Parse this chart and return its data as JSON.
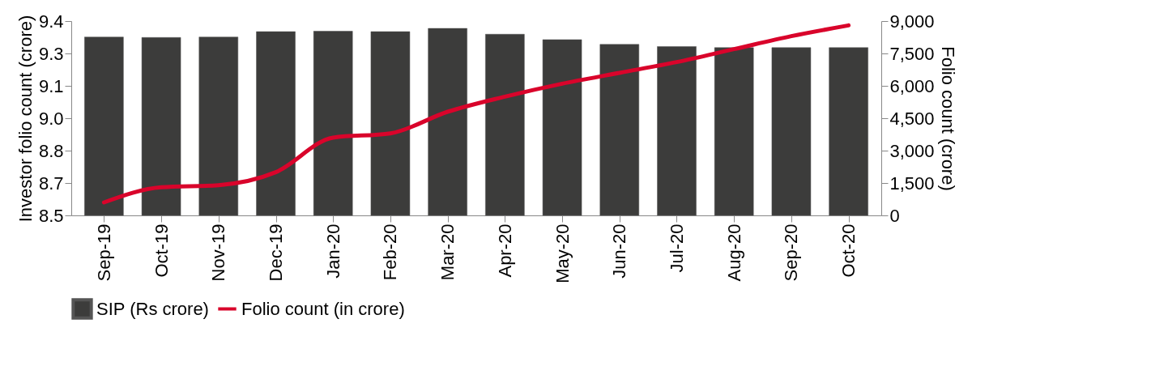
{
  "chart_data": {
    "type": "bar",
    "ylabel": "Investor folio count (crore)",
    "y2label": "Folio count (crore)",
    "categories": [
      "Sep-19",
      "Oct-19",
      "Nov-19",
      "Dec-19",
      "Jan-20",
      "Feb-20",
      "Mar-20",
      "Apr-20",
      "May-20",
      "Jun-20",
      "Jul-20",
      "Aug-20",
      "Sep-20",
      "Oct-20"
    ],
    "series": [
      {
        "name": "SIP (Rs crore)",
        "axis": "y2",
        "color": "#3c3c3b",
        "values": [
          8260,
          8240,
          8260,
          8510,
          8530,
          8510,
          8660,
          8390,
          8140,
          7920,
          7820,
          7770,
          7770,
          7770
        ]
      },
      {
        "name": "Folio count (in crore)",
        "type": "line",
        "axis": "y",
        "color": "#d9042b",
        "values": [
          8.56,
          8.63,
          8.64,
          8.7,
          8.86,
          8.88,
          8.98,
          9.05,
          9.11,
          9.16,
          9.21,
          9.27,
          9.33,
          9.38
        ]
      }
    ],
    "ylim": [
      8.5,
      9.4
    ],
    "yticks": [
      8.5,
      {
        "value": 8.65,
        "label": "8.7"
      },
      8.8,
      {
        "value": 8.95,
        "label": "9.0"
      },
      9.1,
      {
        "value": 9.25,
        "label": "9.3"
      },
      9.4
    ],
    "y2lim": [
      0,
      9000
    ],
    "y2ticks": [
      {
        "value": 0,
        "label": "0"
      },
      {
        "value": 1500,
        "label": "1,500"
      },
      {
        "value": 3000,
        "label": "3,000"
      },
      {
        "value": 4500,
        "label": "4,500"
      },
      {
        "value": 6000,
        "label": "6,000"
      },
      {
        "value": 7500,
        "label": "7,500"
      },
      {
        "value": 9000,
        "label": "9,000"
      }
    ],
    "legend": "bottom",
    "grid": false
  }
}
